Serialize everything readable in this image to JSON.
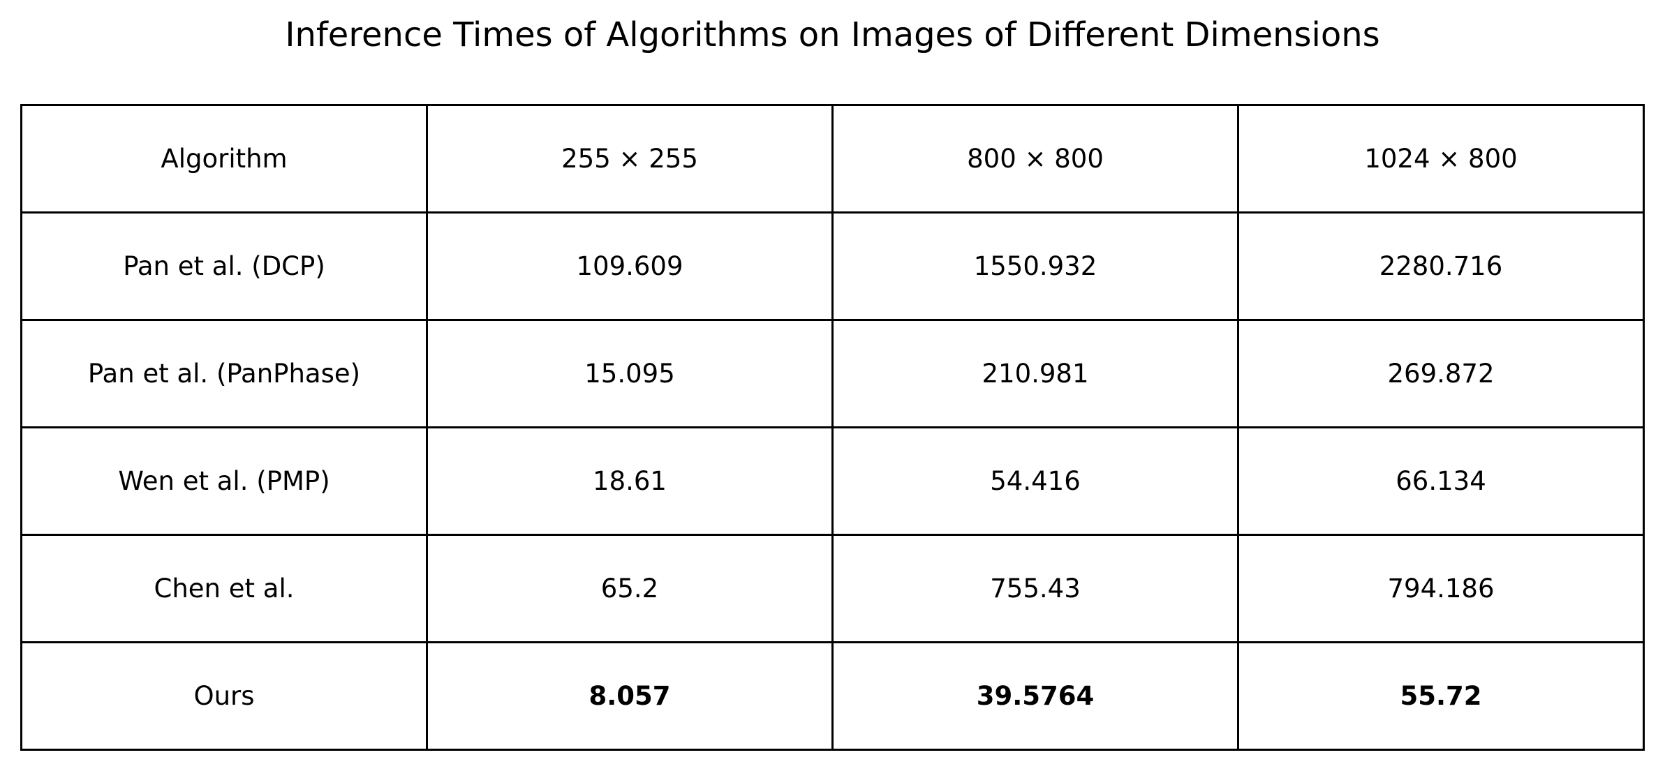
{
  "chart_data": {
    "type": "table",
    "title": "Inference Times of Algorithms on Images of Different Dimensions",
    "columns": [
      "Algorithm",
      "255 × 255",
      "800 × 800",
      "1024 × 800"
    ],
    "rows": [
      {
        "algorithm": "Pan et al. (DCP)",
        "values": [
          "109.609",
          "1550.932",
          "2280.716"
        ],
        "bold": false
      },
      {
        "algorithm": "Pan et al. (PanPhase)",
        "values": [
          "15.095",
          "210.981",
          "269.872"
        ],
        "bold": false
      },
      {
        "algorithm": "Wen et al. (PMP)",
        "values": [
          "18.61",
          "54.416",
          "66.134"
        ],
        "bold": false
      },
      {
        "algorithm": "Chen et al.",
        "values": [
          "65.2",
          "755.43",
          "794.186"
        ],
        "bold": false
      },
      {
        "algorithm": "Ours",
        "values": [
          "8.057",
          "39.5764",
          "55.72"
        ],
        "bold": true
      }
    ]
  }
}
